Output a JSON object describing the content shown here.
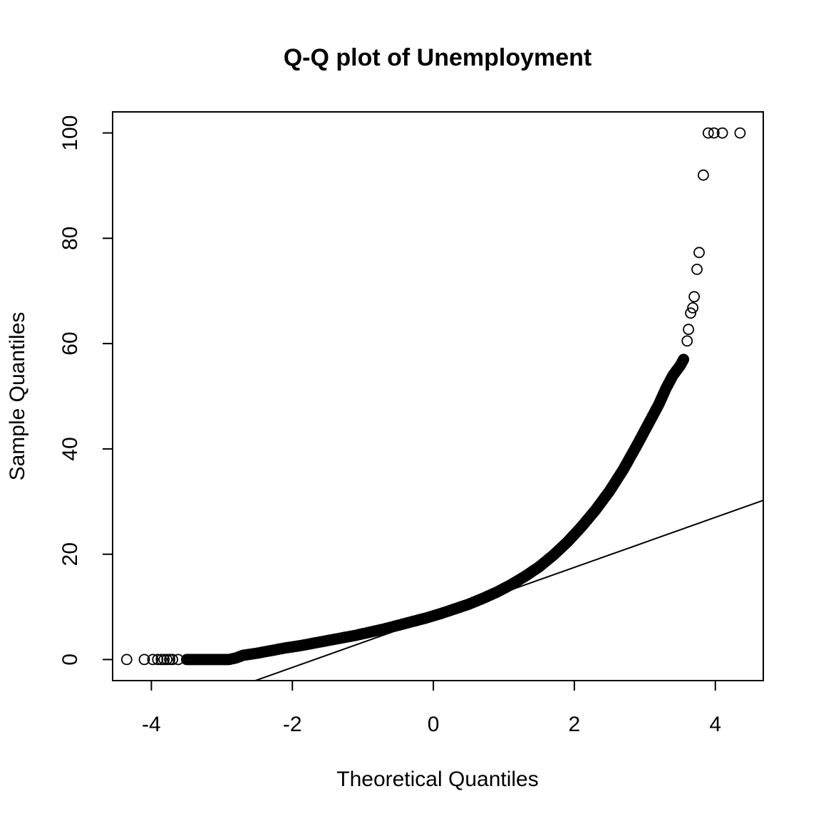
{
  "chart_data": {
    "type": "scatter",
    "title": "Q-Q plot of Unemployment",
    "xlabel": "Theoretical Quantiles",
    "ylabel": "Sample Quantiles",
    "xlim": [
      -4.55,
      4.68
    ],
    "ylim": [
      -4.0,
      104.0
    ],
    "x_ticks": [
      -4,
      -2,
      0,
      2,
      4
    ],
    "x_tick_labels": [
      "-4",
      "-2",
      "0",
      "2",
      "4"
    ],
    "y_ticks": [
      0,
      20,
      40,
      60,
      80,
      100
    ],
    "y_tick_labels": [
      "0",
      "20",
      "40",
      "60",
      "80",
      "100"
    ],
    "grid": false,
    "legend": "none",
    "point_style": "open-circle",
    "reference_line": {
      "intercept": 8.0,
      "slope": 4.75
    },
    "series": [
      {
        "points": [
          [
            -4.35,
            0
          ],
          [
            -4.1,
            0
          ],
          [
            -3.98,
            0
          ],
          [
            -3.91,
            0
          ],
          [
            -3.86,
            0
          ],
          [
            -3.82,
            0
          ],
          [
            -3.78,
            0
          ],
          [
            -3.74,
            0
          ],
          [
            -3.7,
            0
          ],
          [
            -3.62,
            0
          ],
          [
            -3.5,
            0
          ],
          [
            -3.35,
            0
          ],
          [
            -3.2,
            0
          ],
          [
            -3.05,
            0
          ],
          [
            -2.9,
            0
          ],
          [
            -2.8,
            0.3
          ],
          [
            -2.7,
            0.8
          ],
          [
            -2.6,
            1.0
          ],
          [
            -2.5,
            1.2
          ],
          [
            -2.3,
            1.7
          ],
          [
            -2.1,
            2.2
          ],
          [
            -1.9,
            2.6
          ],
          [
            -1.7,
            3.1
          ],
          [
            -1.5,
            3.6
          ],
          [
            -1.3,
            4.1
          ],
          [
            -1.1,
            4.6
          ],
          [
            -0.9,
            5.2
          ],
          [
            -0.7,
            5.8
          ],
          [
            -0.5,
            6.5
          ],
          [
            -0.3,
            7.2
          ],
          [
            -0.1,
            7.9
          ],
          [
            0.1,
            8.7
          ],
          [
            0.3,
            9.6
          ],
          [
            0.5,
            10.5
          ],
          [
            0.7,
            11.6
          ],
          [
            0.9,
            12.8
          ],
          [
            1.1,
            14.2
          ],
          [
            1.3,
            15.8
          ],
          [
            1.5,
            17.6
          ],
          [
            1.7,
            19.8
          ],
          [
            1.9,
            22.3
          ],
          [
            2.1,
            25.2
          ],
          [
            2.3,
            28.4
          ],
          [
            2.5,
            32.0
          ],
          [
            2.7,
            36.2
          ],
          [
            2.9,
            41.0
          ],
          [
            3.0,
            43.5
          ],
          [
            3.1,
            46.0
          ],
          [
            3.2,
            48.5
          ],
          [
            3.3,
            51.5
          ],
          [
            3.4,
            54.0
          ],
          [
            3.5,
            55.8
          ],
          [
            3.55,
            57.0
          ],
          [
            3.6,
            60.5
          ],
          [
            3.62,
            62.7
          ],
          [
            3.65,
            65.8
          ],
          [
            3.68,
            66.8
          ],
          [
            3.7,
            68.9
          ],
          [
            3.74,
            74.1
          ],
          [
            3.77,
            77.3
          ],
          [
            3.83,
            92.0
          ],
          [
            3.9,
            100
          ],
          [
            3.98,
            100
          ],
          [
            4.1,
            100
          ],
          [
            4.35,
            100
          ]
        ]
      }
    ]
  }
}
